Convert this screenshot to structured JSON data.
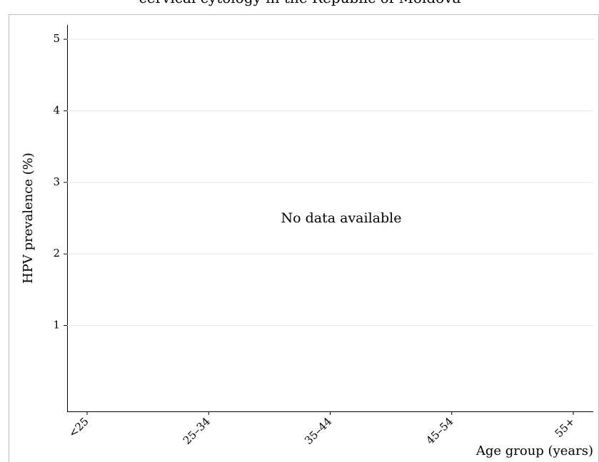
{
  "chart_data": {
    "type": "line",
    "title": "cervical cytology in the Republic of Moldova",
    "annotation": "No data available",
    "x_label": "Age group (years)",
    "y_label": "HPV prevalence (%)",
    "categories": [
      "<25",
      "25–34",
      "35–44",
      "45–54",
      "55+"
    ],
    "ylim": [
      -0.2,
      5.2
    ],
    "yticks": [
      1,
      2,
      3,
      4,
      5
    ],
    "grid": true
  }
}
